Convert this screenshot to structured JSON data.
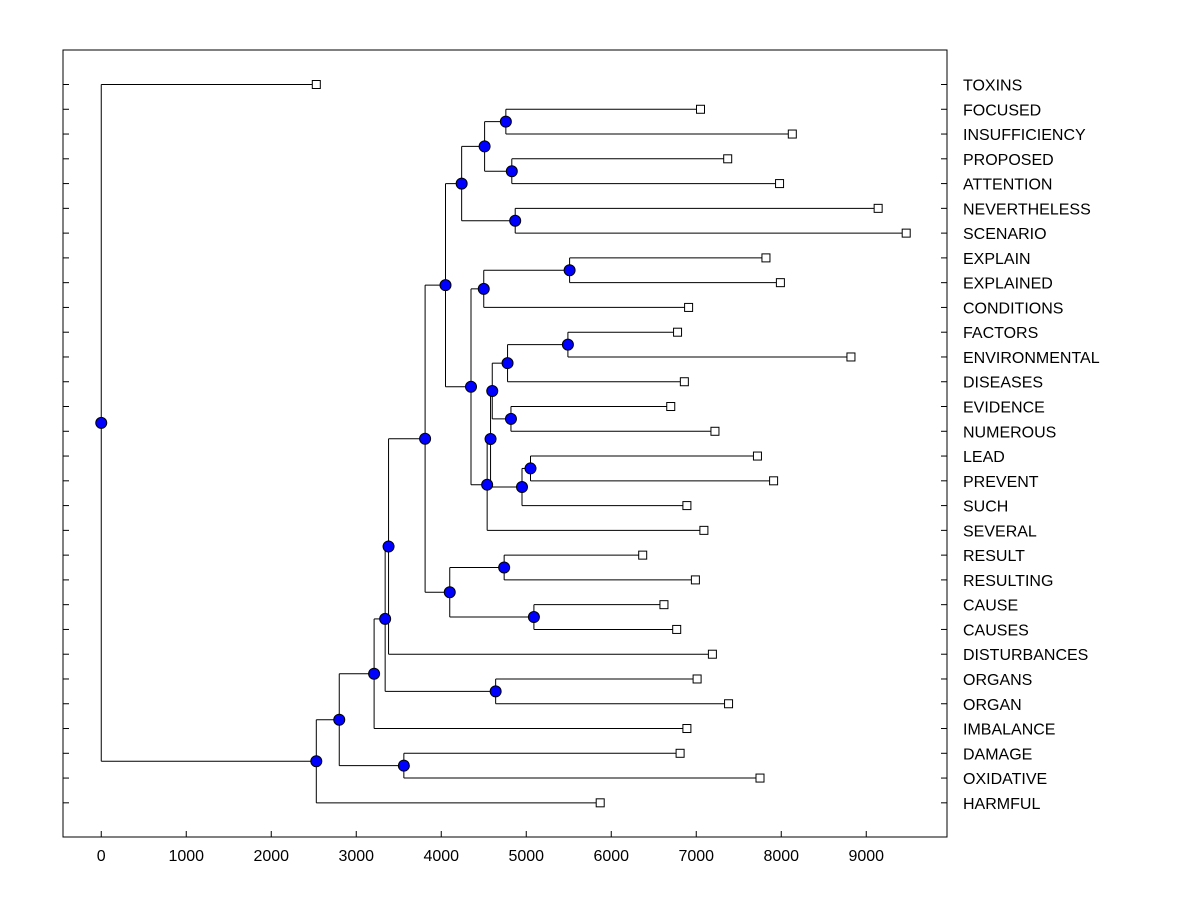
{
  "chart_data": {
    "type": "dendrogram",
    "title": "",
    "xlabel": "",
    "ylabel": "",
    "xlim": [
      -450,
      9950
    ],
    "grid": false,
    "x_ticks": [
      0,
      1000,
      2000,
      3000,
      4000,
      5000,
      6000,
      7000,
      8000,
      9000
    ],
    "x_tick_labels": [
      "0",
      "1000",
      "2000",
      "3000",
      "4000",
      "5000",
      "6000",
      "7000",
      "8000",
      "9000"
    ],
    "leaves": [
      {
        "label": "TOXINS",
        "value": 2530
      },
      {
        "label": "FOCUSED",
        "value": 7050
      },
      {
        "label": "INSUFFICIENCY",
        "value": 8130
      },
      {
        "label": "PROPOSED",
        "value": 7370
      },
      {
        "label": "ATTENTION",
        "value": 7980
      },
      {
        "label": "NEVERTHELESS",
        "value": 9140
      },
      {
        "label": "SCENARIO",
        "value": 9470
      },
      {
        "label": "EXPLAIN",
        "value": 7820
      },
      {
        "label": "EXPLAINED",
        "value": 7990
      },
      {
        "label": "CONDITIONS",
        "value": 6910
      },
      {
        "label": "FACTORS",
        "value": 6780
      },
      {
        "label": "ENVIRONMENTAL",
        "value": 8820
      },
      {
        "label": "DISEASES",
        "value": 6860
      },
      {
        "label": "EVIDENCE",
        "value": 6700
      },
      {
        "label": "NUMEROUS",
        "value": 7220
      },
      {
        "label": "LEAD",
        "value": 7720
      },
      {
        "label": "PREVENT",
        "value": 7910
      },
      {
        "label": "SUCH",
        "value": 6890
      },
      {
        "label": "SEVERAL",
        "value": 7090
      },
      {
        "label": "RESULT",
        "value": 6370
      },
      {
        "label": "RESULTING",
        "value": 6990
      },
      {
        "label": "CAUSE",
        "value": 6620
      },
      {
        "label": "CAUSES",
        "value": 6770
      },
      {
        "label": "DISTURBANCES",
        "value": 7190
      },
      {
        "label": "ORGANS",
        "value": 7010
      },
      {
        "label": "ORGAN",
        "value": 7380
      },
      {
        "label": "IMBALANCE",
        "value": 6890
      },
      {
        "label": "DAMAGE",
        "value": 6810
      },
      {
        "label": "OXIDATIVE",
        "value": 7750
      },
      {
        "label": "HARMFUL",
        "value": 5870
      }
    ],
    "merges": [
      {
        "id": "n1",
        "value": 4760,
        "children": [
          "FOCUSED",
          "INSUFFICIENCY"
        ]
      },
      {
        "id": "n2",
        "value": 4830,
        "children": [
          "PROPOSED",
          "ATTENTION"
        ]
      },
      {
        "id": "n3",
        "value": 4510,
        "children": [
          "n1",
          "n2"
        ]
      },
      {
        "id": "n4",
        "value": 4870,
        "children": [
          "NEVERTHELESS",
          "SCENARIO"
        ]
      },
      {
        "id": "n5",
        "value": 4240,
        "children": [
          "n3",
          "n4"
        ]
      },
      {
        "id": "n6",
        "value": 5510,
        "children": [
          "EXPLAIN",
          "EXPLAINED"
        ]
      },
      {
        "id": "n7",
        "value": 4500,
        "children": [
          "n6",
          "CONDITIONS"
        ]
      },
      {
        "id": "n8",
        "value": 5490,
        "children": [
          "FACTORS",
          "ENVIRONMENTAL"
        ]
      },
      {
        "id": "n9",
        "value": 4780,
        "children": [
          "n8",
          "DISEASES"
        ]
      },
      {
        "id": "n10",
        "value": 4820,
        "children": [
          "EVIDENCE",
          "NUMEROUS"
        ]
      },
      {
        "id": "n11",
        "value": 4600,
        "children": [
          "n9",
          "n10"
        ]
      },
      {
        "id": "n12",
        "value": 5050,
        "children": [
          "LEAD",
          "PREVENT"
        ]
      },
      {
        "id": "n13",
        "value": 4950,
        "children": [
          "n12",
          "SUCH"
        ]
      },
      {
        "id": "n14",
        "value": 4580,
        "children": [
          "n11",
          "n13"
        ]
      },
      {
        "id": "n15",
        "value": 4540,
        "children": [
          "n14",
          "SEVERAL"
        ]
      },
      {
        "id": "n16",
        "value": 4350,
        "children": [
          "n7",
          "n15"
        ]
      },
      {
        "id": "n17",
        "value": 4050,
        "children": [
          "n5",
          "n16"
        ]
      },
      {
        "id": "n18",
        "value": 4740,
        "children": [
          "RESULT",
          "RESULTING"
        ]
      },
      {
        "id": "n19",
        "value": 5090,
        "children": [
          "CAUSE",
          "CAUSES"
        ]
      },
      {
        "id": "n20",
        "value": 4100,
        "children": [
          "n18",
          "n19"
        ]
      },
      {
        "id": "n21",
        "value": 3810,
        "children": [
          "n17",
          "n20"
        ]
      },
      {
        "id": "n22",
        "value": 3380,
        "children": [
          "n21",
          "DISTURBANCES"
        ]
      },
      {
        "id": "n23",
        "value": 4640,
        "children": [
          "ORGANS",
          "ORGAN"
        ]
      },
      {
        "id": "n24",
        "value": 3340,
        "children": [
          "n22",
          "n23"
        ]
      },
      {
        "id": "n25",
        "value": 3210,
        "children": [
          "n24",
          "IMBALANCE"
        ]
      },
      {
        "id": "n26",
        "value": 3560,
        "children": [
          "DAMAGE",
          "OXIDATIVE"
        ]
      },
      {
        "id": "n27",
        "value": 2800,
        "children": [
          "n25",
          "n26"
        ]
      },
      {
        "id": "n28",
        "value": 2530,
        "children": [
          "n27",
          "HARMFUL"
        ]
      },
      {
        "id": "n29",
        "value": 0,
        "children": [
          "TOXINS",
          "n28"
        ]
      }
    ],
    "colors": {
      "merge_node": "#0000ff",
      "leaf_marker": "#ffffff",
      "line": "#000000"
    }
  }
}
